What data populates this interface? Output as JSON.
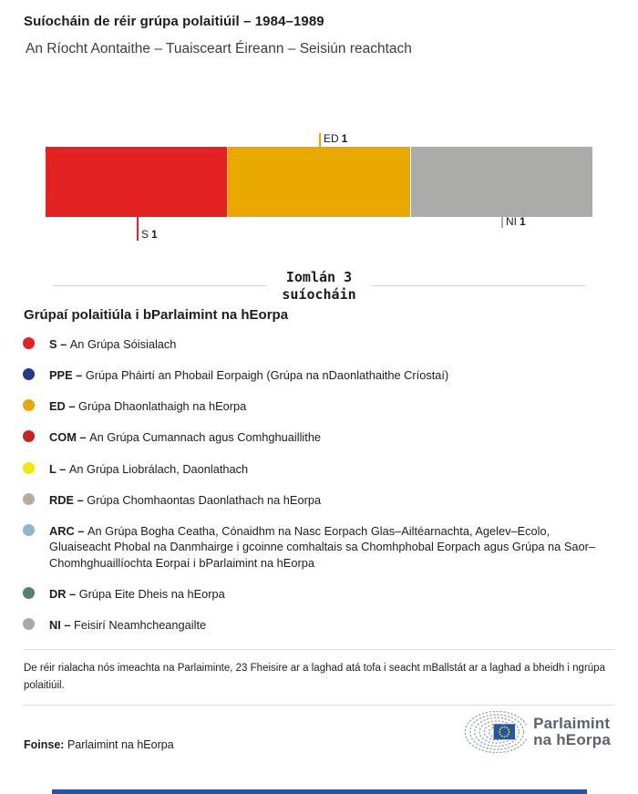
{
  "header": {
    "title": "Suíocháin de réir grúpa polaitiúil – 1984–1989",
    "subtitle": "An Ríocht Aontaithe – Tuaisceart Éireann – Seisiún reachtach"
  },
  "chart_data": {
    "type": "bar",
    "orientation": "horizontal_stacked",
    "title": "Suíocháin de réir grúpa polaitiúil – 1984–1989",
    "subtitle": "An Ríocht Aontaithe – Tuaisceart Éireann – Seisiún reachtach",
    "total_seats": 3,
    "total_label": "Iomlán 3 suíocháin",
    "categories": [
      "S",
      "ED",
      "NI"
    ],
    "values": [
      1,
      1,
      1
    ],
    "segments": [
      {
        "code": "S",
        "seats": 1,
        "color": "#E32322",
        "callout_side": "below",
        "tick_length": 26
      },
      {
        "code": "ED",
        "seats": 1,
        "color": "#E8A800",
        "callout_side": "above",
        "tick_length": 15
      },
      {
        "code": "NI",
        "seats": 1,
        "color": "#ABABA9",
        "callout_side": "below",
        "tick_length": 12
      }
    ]
  },
  "total": {
    "line1": "Iomlán 3",
    "line2": "suíocháin"
  },
  "legend": {
    "heading": "Grúpaí polaitiúla i bParlaimint na hEorpa",
    "items": [
      {
        "code": "S",
        "name": "An Grúpa Sóisialach",
        "color": "#E32322"
      },
      {
        "code": "PPE",
        "name": "Grúpa Pháirtí an Phobail Eorpaigh (Grúpa na nDaonlathaithe Críostaí)",
        "color": "#24388F"
      },
      {
        "code": "ED",
        "name": "Grúpa Dhaonlathaigh na hEorpa",
        "color": "#E8A800"
      },
      {
        "code": "COM",
        "name": "An Grúpa Cumannach agus Comhghuaillithe",
        "color": "#C92227"
      },
      {
        "code": "L",
        "name": "An Grúpa Liobrálach, Daonlathach",
        "color": "#F3E600"
      },
      {
        "code": "RDE",
        "name": "Grúpa Chomhaontas Daonlathach na hEorpa",
        "color": "#B8AC9E"
      },
      {
        "code": "ARC",
        "name": "An Grúpa Bogha Ceatha, Cónaidhm na Nasc Eorpach Glas–Ailtéarnachta, Agelev–Ecolo, Gluaiseacht Phobal na Danmhairge i gcoinne comhaltais sa Chomhphobal Eorpach agus Grúpa na Saor–Chomhghuaillíochta Eorpaí i bParlaimint na hEorpa",
        "color": "#92B5CC"
      },
      {
        "code": "DR",
        "name": "Grúpa Eite Dheis na hEorpa",
        "color": "#567F6D"
      },
      {
        "code": "NI",
        "name": "Feisirí Neamhcheangailte",
        "color": "#A9A9A9"
      }
    ]
  },
  "footnote": "De réir rialacha nós imeachta na Parlaiminte, 23 Fheisire ar a laghad atá tofa i seacht mBallstát ar a laghad a bheidh i ngrúpa polaitiúil.",
  "source": {
    "label": "Foinse:",
    "value": "Parlaimint na hEorpa"
  },
  "logo": {
    "line1": "Parlaimint",
    "line2": "na hEorpa",
    "flag_color": "#2456A4",
    "star_color": "#F5D020",
    "arc_color": "#9AA2AA"
  }
}
